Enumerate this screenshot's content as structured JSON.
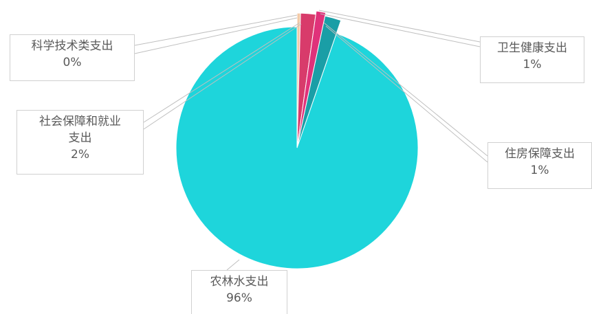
{
  "chart_data": {
    "type": "pie",
    "categories": [
      "农林水支出",
      "科学技术类支出",
      "社会保障和就业支出",
      "卫生健康支出",
      "住房保障支出"
    ],
    "values": [
      96,
      0,
      2,
      1,
      1
    ],
    "value_labels": [
      "96%",
      "0%",
      "2%",
      "1%",
      "1%"
    ],
    "colors": [
      "#1ed5db",
      "#f3c9a6",
      "#d83b6b",
      "#e0327a",
      "#1a9ea6"
    ],
    "label_lines": {
      "agri": [
        "农林水支出"
      ],
      "sci": [
        "科学技术类支出"
      ],
      "social": [
        "社会保障和就业",
        "支出"
      ],
      "health": [
        "卫生健康支出"
      ],
      "housing": [
        "住房保障支出"
      ]
    }
  }
}
